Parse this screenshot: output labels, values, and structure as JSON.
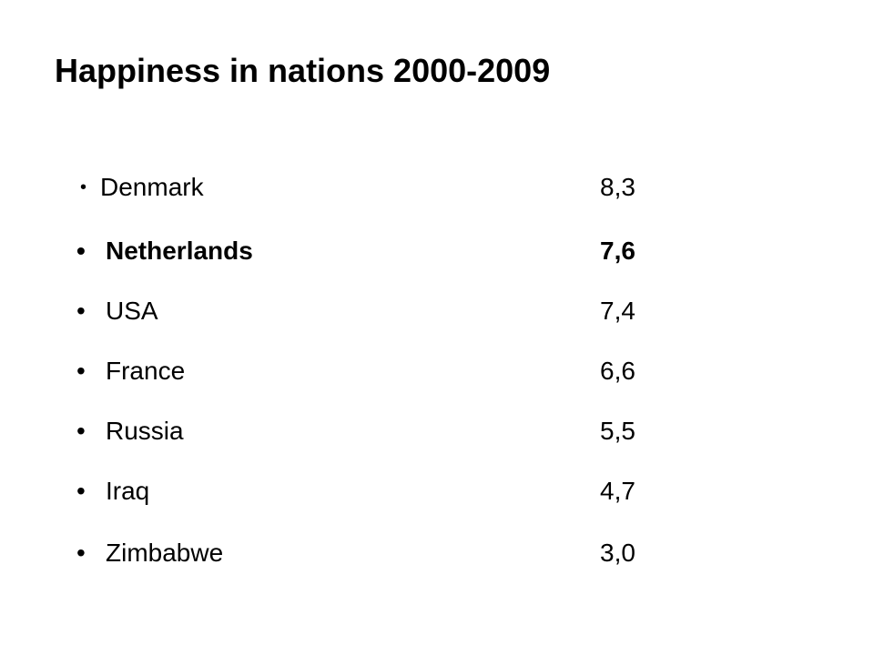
{
  "title": "Happiness in nations 2000-2009",
  "bullet_glyph": "•",
  "items": [
    {
      "country": "Denmark",
      "score": "8,3"
    },
    {
      "country": "Netherlands",
      "score": "7,6"
    },
    {
      "country": "USA",
      "score": "7,4"
    },
    {
      "country": "France",
      "score": "6,6"
    },
    {
      "country": "Russia",
      "score": "5,5"
    },
    {
      "country": "Iraq",
      "score": "4,7"
    },
    {
      "country": "Zimbabwe",
      "score": "3,0"
    }
  ]
}
